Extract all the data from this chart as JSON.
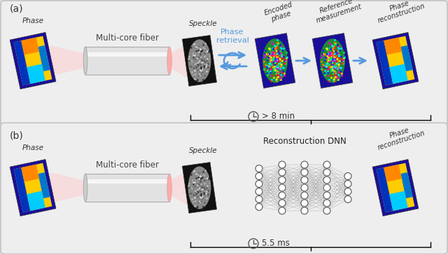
{
  "bg_color": "#e0e0e0",
  "panel_bg": "#eeeeee",
  "blue_arrow": "#5599dd",
  "dark_text": "#222222",
  "label_a": "(a)",
  "label_b": "(b)",
  "fiber_label": "Multi-core fiber",
  "speckle_label": "Speckle",
  "phase_label": "Phase",
  "phase_retrieval_label": "Phase\nretrieval",
  "encoded_phase_label": "Encoded\nphase",
  "reference_label": "Reference\nmeasurement",
  "phase_recon_label": "Phase\nreconstruction",
  "time_a": "> 8 min",
  "time_b": "5.5 ms",
  "recon_dnn_label": "Reconstruction DNN"
}
